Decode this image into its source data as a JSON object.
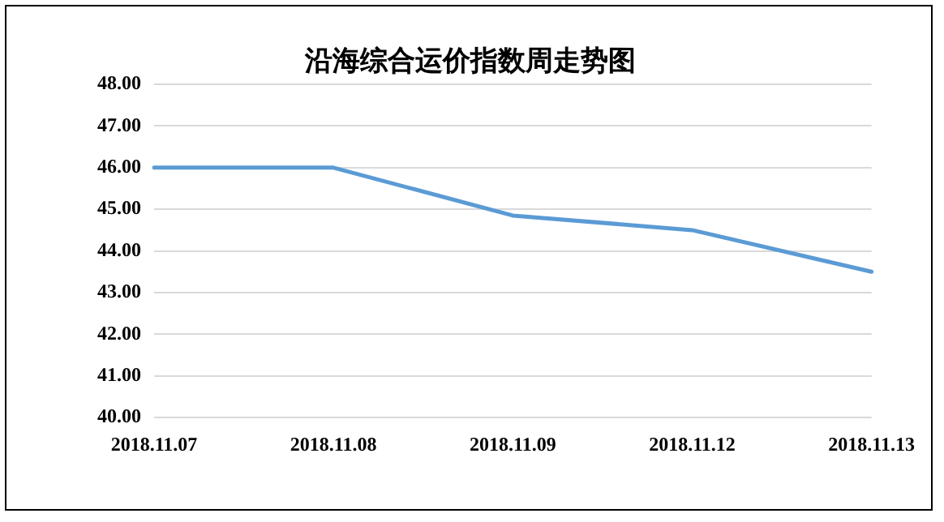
{
  "chart_data": {
    "type": "line",
    "title": "沿海综合运价指数周走势图",
    "categories": [
      "2018.11.07",
      "2018.11.08",
      "2018.11.09",
      "2018.11.12",
      "2018.11.13"
    ],
    "series": [
      {
        "color": "#5b9bd5",
        "values": [
          46.0,
          46.0,
          44.85,
          44.5,
          43.5
        ]
      }
    ],
    "ylim": [
      40,
      48
    ],
    "yticks": [
      {
        "value": 40,
        "label": "40.00"
      },
      {
        "value": 41,
        "label": "41.00"
      },
      {
        "value": 42,
        "label": "42.00"
      },
      {
        "value": 43,
        "label": "43.00"
      },
      {
        "value": 44,
        "label": "44.00"
      },
      {
        "value": 45,
        "label": "45.00"
      },
      {
        "value": 46,
        "label": "46.00"
      },
      {
        "value": 47,
        "label": "47.00"
      },
      {
        "value": 48,
        "label": "48.00"
      }
    ],
    "grid": "y",
    "legend": false,
    "marker": "none",
    "line_style": "solid"
  }
}
